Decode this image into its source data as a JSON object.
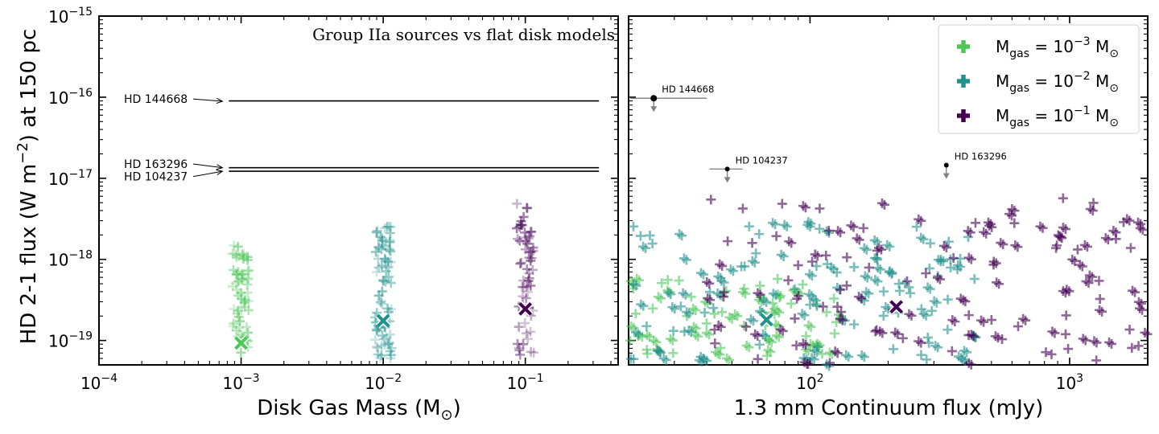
{
  "chart_data": [
    {
      "type": "scatter",
      "panel": "left",
      "title": "Group IIa sources vs flat disk models",
      "xlabel": "Disk Gas Mass (M",
      "xlabel_sub": "⊙",
      "xlabel_close": ")",
      "ylabel": "HD 2-1 flux (W m",
      "ylabel_sup": "−2",
      "ylabel_close": ") at 150 pc",
      "xscale": "log",
      "yscale": "log",
      "xlim": [
        0.0001,
        0.45
      ],
      "ylim": [
        5e-20,
        1e-15
      ],
      "x_ticks": [
        {
          "value": 0.0001,
          "base": "10",
          "exp": "−4"
        },
        {
          "value": 0.001,
          "base": "10",
          "exp": "−3"
        },
        {
          "value": 0.01,
          "base": "10",
          "exp": "−2"
        },
        {
          "value": 0.1,
          "base": "10",
          "exp": "−1"
        }
      ],
      "y_ticks": [
        {
          "value": 1e-15,
          "base": "10",
          "exp": "−15"
        },
        {
          "value": 1e-16,
          "base": "10",
          "exp": "−16"
        },
        {
          "value": 1e-17,
          "base": "10",
          "exp": "−17"
        },
        {
          "value": 1e-18,
          "base": "10",
          "exp": "−18"
        },
        {
          "value": 1e-19,
          "base": "10",
          "exp": "−19"
        }
      ],
      "horizontal_lines": [
        {
          "label": "HD 144668",
          "y": 9e-17,
          "x_range": [
            0.00082,
            0.33
          ],
          "label_pos": [
            0.0001,
            9.5e-17
          ],
          "arrow_to": [
            0.0008,
            8.9e-17
          ]
        },
        {
          "label": "HD 163296",
          "y": 1.35e-17,
          "x_range": [
            0.00082,
            0.33
          ],
          "label_pos": [
            0.0001,
            1.5e-17
          ],
          "arrow_to": [
            0.0008,
            1.35e-17
          ]
        },
        {
          "label": "HD 104237",
          "y": 1.22e-17,
          "x_range": [
            0.00082,
            0.33
          ],
          "label_pos": [
            0.0001,
            1.05e-17
          ],
          "arrow_to": [
            0.0008,
            1.22e-17
          ]
        }
      ],
      "series": [
        {
          "name": "M_gas = 1e-3",
          "color": "#4ec65a",
          "x_center": 0.001,
          "y_min": 7e-20,
          "y_max": 1.5e-18,
          "n": 60
        },
        {
          "name": "M_gas = 1e-2",
          "color": "#21918c",
          "x_center": 0.01,
          "y_min": 6e-20,
          "y_max": 3e-18,
          "n": 70
        },
        {
          "name": "M_gas = 1e-1",
          "color": "#440154",
          "x_center": 0.1,
          "y_min": 6e-20,
          "y_max": 5e-18,
          "n": 60
        }
      ],
      "medians": [
        {
          "x": 0.001,
          "y": 9.3e-20,
          "color": "#4ec65a"
        },
        {
          "x": 0.01,
          "y": 1.75e-19,
          "color": "#21918c"
        },
        {
          "x": 0.1,
          "y": 2.45e-19,
          "color": "#440154"
        }
      ]
    },
    {
      "type": "scatter",
      "panel": "right",
      "xlabel": "1.3 mm Continuum flux (mJy)",
      "xscale": "log",
      "yscale": "log",
      "xlim": [
        20,
        2000
      ],
      "ylim": [
        5e-20,
        1e-15
      ],
      "x_ticks": [
        {
          "value": 100,
          "base": "10",
          "exp": "2"
        },
        {
          "value": 1000,
          "base": "10",
          "exp": "3"
        }
      ],
      "legend": {
        "position": "top-right",
        "entries": [
          {
            "color": "#4ec65a",
            "pre": "M",
            "sub": "gas",
            "mid": " = 10",
            "sup": "−3",
            "post": " M",
            "post_sub": "⊙"
          },
          {
            "color": "#21918c",
            "pre": "M",
            "sub": "gas",
            "mid": " = 10",
            "sup": "−2",
            "post": " M",
            "post_sub": "⊙"
          },
          {
            "color": "#440154",
            "pre": "M",
            "sub": "gas",
            "mid": " = 10",
            "sup": "−1",
            "post": " M",
            "post_sub": "⊙"
          }
        ]
      },
      "upper_limits": [
        {
          "label": "HD 144668",
          "x": 25,
          "y": 9.7e-17,
          "xerr_range": [
            20,
            40
          ],
          "dot": "large"
        },
        {
          "label": "HD 104237",
          "x": 48,
          "y": 1.3e-17,
          "xerr_range": [
            41,
            55
          ],
          "dot": "small"
        },
        {
          "label": "HD 163296",
          "x": 335,
          "y": 1.45e-17,
          "xerr_range": null,
          "dot": "small"
        }
      ],
      "series": [
        {
          "name": "M_gas = 1e-3",
          "color": "#4ec65a",
          "x_range": [
            20,
            130
          ],
          "y_range": [
            6e-20,
            6e-19
          ],
          "n": 80
        },
        {
          "name": "M_gas = 1e-2",
          "color": "#21918c",
          "x_range": [
            20,
            450
          ],
          "y_range": [
            5e-20,
            3e-18
          ],
          "n": 130
        },
        {
          "name": "M_gas = 1e-1",
          "color": "#440154",
          "x_range": [
            40,
            2000
          ],
          "y_range": [
            5e-20,
            6e-18
          ],
          "n": 140
        }
      ],
      "medians": [
        {
          "x": 68,
          "y": 1.8e-19,
          "color": "#21918c"
        },
        {
          "x": 215,
          "y": 2.6e-19,
          "color": "#440154"
        }
      ]
    }
  ]
}
